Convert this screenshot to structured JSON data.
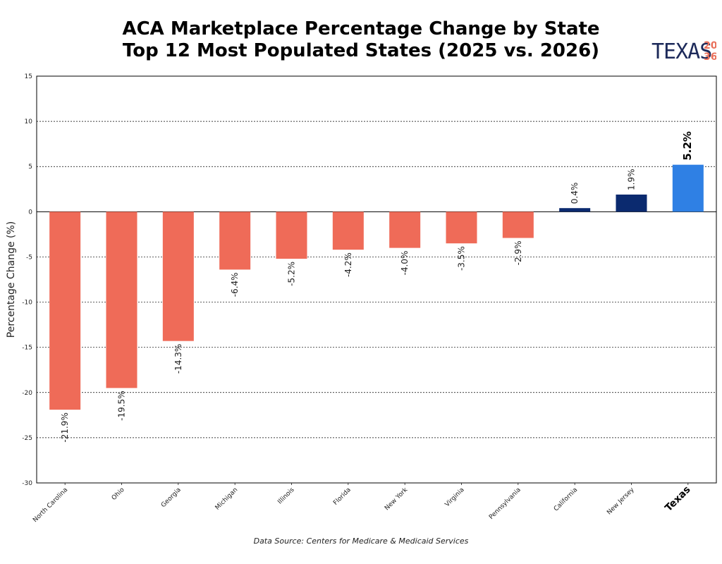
{
  "title_line1": "ACA Marketplace Percentage Change by State",
  "title_line2": "Top 12 Most Populated States (2025 vs. 2026)",
  "logo": {
    "text": "TEXAS",
    "year_top": "20",
    "year_bottom": "36"
  },
  "source": "Data Source: Centers for Medicare & Medicaid Services",
  "colors": {
    "negative": "#ef6b58",
    "positive": "#0b2a6f",
    "highlight": "#2f80e4",
    "grid": "#000000"
  },
  "chart_data": {
    "type": "bar",
    "title": "",
    "xlabel": "",
    "ylabel": "Percentage Change (%)",
    "ylim": [
      -30,
      15
    ],
    "yticks": [
      15,
      10,
      5,
      0,
      -5,
      -10,
      -15,
      -20,
      -25,
      -30
    ],
    "grid": "horizontal dashed",
    "highlight_category": "Texas",
    "categories": [
      "North Carolina",
      "Ohio",
      "Georgia",
      "Michigan",
      "Illinois",
      "Florida",
      "New York",
      "Virginia",
      "Pennsylvania",
      "California",
      "New Jersey",
      "Texas"
    ],
    "values": [
      -21.9,
      -19.5,
      -14.3,
      -6.4,
      -5.2,
      -4.2,
      -4.0,
      -3.5,
      -2.9,
      0.4,
      1.9,
      5.2
    ],
    "data_labels": [
      "-21.9%",
      "-19.5%",
      "-14.3%",
      "-6.4%",
      "-5.2%",
      "-4.2%",
      "-4.0%",
      "-3.5%",
      "-2.9%",
      "0.4%",
      "1.9%",
      "5.2%"
    ]
  }
}
